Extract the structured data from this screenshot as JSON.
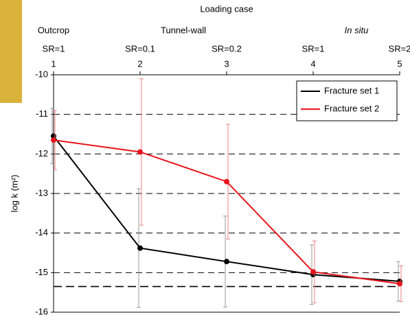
{
  "chart_data": {
    "type": "line",
    "title": "Loading case",
    "groups": [
      {
        "label": "Outcrop",
        "at": 1
      },
      {
        "label": "Tunnel-wall",
        "at": 2.5
      },
      {
        "label": "In situ",
        "at": 4.5
      }
    ],
    "sr_labels": [
      "SR=1",
      "SR=0.1",
      "SR=0.2",
      "SR=1",
      "SR=2"
    ],
    "y_label": "log k (m²)",
    "x": [
      1,
      2,
      3,
      4,
      5
    ],
    "xlim": [
      1,
      5
    ],
    "xticks": [
      1,
      2,
      3,
      4,
      5
    ],
    "ylim": [
      -16,
      -10
    ],
    "yticks": [
      -16,
      -15,
      -14,
      -13,
      -12,
      -11,
      -10
    ],
    "grid": true,
    "reference_line": -15.35,
    "legend": "top-right",
    "series": [
      {
        "name": "Fracture set 1",
        "color": "#000000",
        "error_color": "#999999",
        "values": [
          -11.55,
          -14.38,
          -14.72,
          -15.05,
          -15.22
        ],
        "errors": [
          0.7,
          1.5,
          1.15,
          0.75,
          0.5
        ]
      },
      {
        "name": "Fracture set 2",
        "color": "#e8141b",
        "error_color": "#f08080",
        "values": [
          -11.65,
          -11.95,
          -12.7,
          -14.98,
          -15.28
        ],
        "errors": [
          0.75,
          1.85,
          1.45,
          0.78,
          0.45
        ]
      }
    ]
  }
}
